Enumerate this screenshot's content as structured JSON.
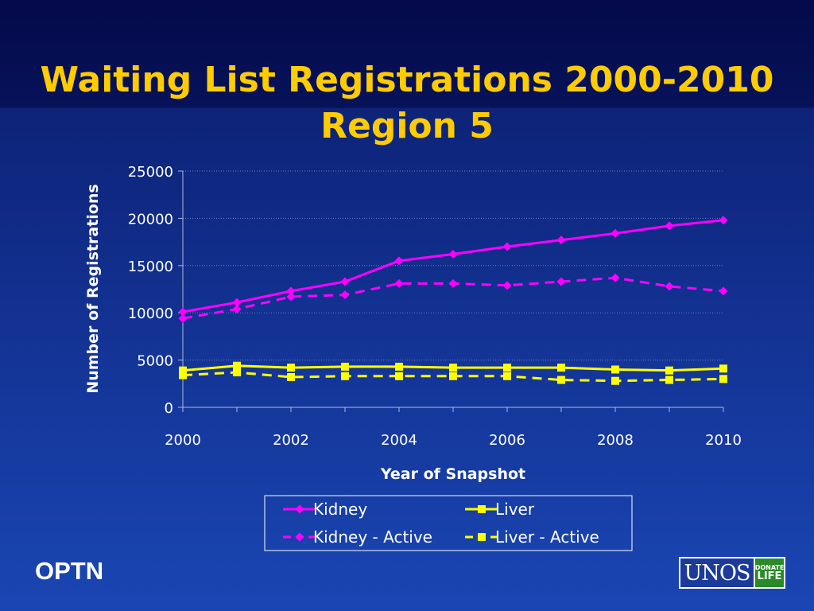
{
  "slide": {
    "title_line1": "Waiting List Registrations 2000-2010",
    "title_line2": "Region 5",
    "footer_left": "OPTN",
    "logo": {
      "name": "UNOS",
      "donate_line1": "DONATE",
      "donate_line2": "LIFE"
    }
  },
  "colors": {
    "title": "#ffcc00",
    "kidney": "#ff00ff",
    "liver": "#ffff00",
    "text": "#ffffff"
  },
  "chart_data": {
    "type": "line",
    "title": "",
    "xlabel": "Year of Snapshot",
    "ylabel": "Number of Registrations",
    "x": [
      2000,
      2001,
      2002,
      2003,
      2004,
      2005,
      2006,
      2007,
      2008,
      2009,
      2010
    ],
    "xticks": [
      2000,
      2002,
      2004,
      2006,
      2008,
      2010
    ],
    "yticks": [
      0,
      5000,
      10000,
      15000,
      20000,
      25000
    ],
    "ylim": [
      0,
      25000
    ],
    "xlim": [
      2000,
      2010
    ],
    "grid": true,
    "legend_position": "bottom",
    "series": [
      {
        "name": "Kidney",
        "color": "#ff00ff",
        "dashed": false,
        "marker": "diamond",
        "values": [
          10100,
          11100,
          12300,
          13300,
          15500,
          16200,
          17000,
          17700,
          18400,
          19200,
          19800
        ]
      },
      {
        "name": "Liver",
        "color": "#ffff00",
        "dashed": false,
        "marker": "square",
        "values": [
          3900,
          4400,
          4200,
          4300,
          4300,
          4200,
          4200,
          4200,
          4000,
          3900,
          4100
        ]
      },
      {
        "name": "Kidney - Active",
        "color": "#ff00ff",
        "dashed": true,
        "marker": "diamond",
        "values": [
          9400,
          10400,
          11700,
          11900,
          13100,
          13100,
          12900,
          13300,
          13700,
          12800,
          12300
        ]
      },
      {
        "name": "Liver - Active",
        "color": "#ffff00",
        "dashed": true,
        "marker": "square",
        "values": [
          3400,
          3700,
          3200,
          3300,
          3300,
          3300,
          3300,
          2900,
          2800,
          2900,
          3000
        ]
      }
    ]
  }
}
